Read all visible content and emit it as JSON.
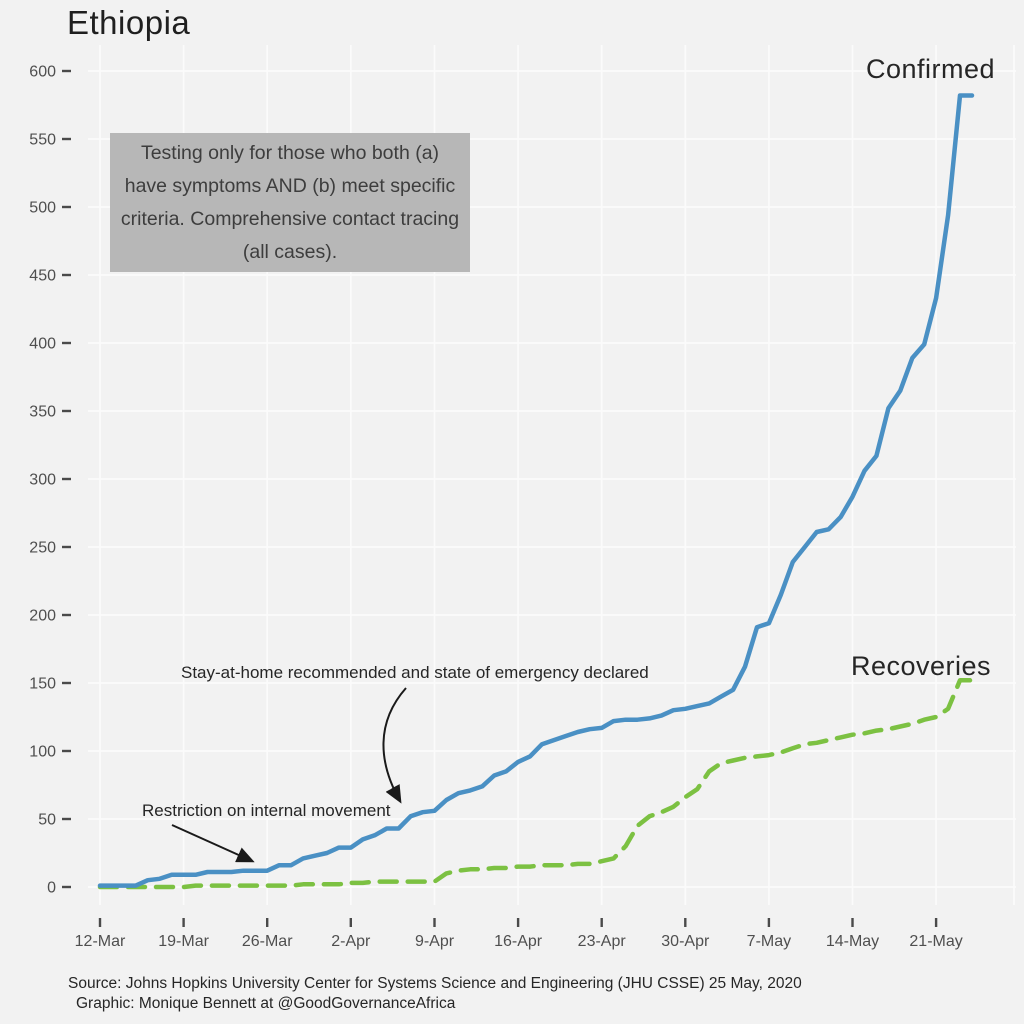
{
  "title": "Ethiopia",
  "note": {
    "lines": [
      "Testing only for those who both (a)",
      "have symptoms AND (b) meet specific",
      "criteria. Comprehensive contact tracing",
      "(all cases)."
    ]
  },
  "annotations": [
    {
      "label": "Stay-at-home recommended and state of emergency declared"
    },
    {
      "label": "Restriction on internal movement"
    }
  ],
  "series_labels": {
    "confirmed": "Confirmed",
    "recoveries": "Recoveries"
  },
  "source": {
    "line1": "Source: Johns Hopkins University Center for Systems Science and Engineering (JHU CSSE) 25 May, 2020",
    "line2": "Graphic: Monique Bennett at @GoodGovernanceAfrica"
  },
  "colors": {
    "background": "#f2f2f2",
    "grid": "#fbfbfb",
    "axis_tick": "#4a4a4a",
    "axis_text": "#4f4f4f",
    "confirmed": "#4a90c4",
    "recoveries": "#7cc142",
    "note_box": "#b7b7b7",
    "annotation_arrow": "#1a1a1a"
  },
  "chart_data": {
    "type": "line",
    "title": "Ethiopia",
    "x_start": "12-Mar-2020",
    "x_end": "24-May-2020",
    "cadence": "daily",
    "x_tick_labels": [
      "12-Mar",
      "19-Mar",
      "26-Mar",
      "2-Apr",
      "9-Apr",
      "16-Apr",
      "23-Apr",
      "30-Apr",
      "7-May",
      "14-May",
      "21-May"
    ],
    "x_tick_interval_days": 7,
    "ylim": [
      0,
      600
    ],
    "y_tick_step": 50,
    "grid": true,
    "legend_position": "end-of-line labels",
    "series": [
      {
        "name": "Recoveries",
        "color": "#7cc142",
        "style": "dashed",
        "values": [
          0,
          0,
          0,
          0,
          0,
          0,
          0,
          0,
          1,
          1,
          1,
          1,
          1,
          1,
          1,
          1,
          1,
          2,
          2,
          2,
          2,
          3,
          3,
          4,
          4,
          4,
          4,
          4,
          4,
          10,
          12,
          13,
          13,
          14,
          14,
          15,
          15,
          16,
          16,
          16,
          17,
          17,
          19,
          21,
          30,
          45,
          52,
          55,
          59,
          66,
          72,
          85,
          91,
          93,
          95,
          96,
          97,
          99,
          102,
          105,
          106,
          108,
          110,
          112,
          113,
          115,
          116,
          118,
          120,
          123,
          125,
          131,
          152,
          152
        ]
      },
      {
        "name": "Confirmed",
        "color": "#4a90c4",
        "style": "solid",
        "values": [
          1,
          1,
          1,
          1,
          5,
          6,
          9,
          9,
          9,
          11,
          11,
          11,
          12,
          12,
          12,
          16,
          16,
          21,
          23,
          25,
          29,
          29,
          35,
          38,
          43,
          43,
          52,
          55,
          56,
          64,
          69,
          71,
          74,
          82,
          85,
          92,
          96,
          105,
          108,
          111,
          114,
          116,
          117,
          122,
          123,
          123,
          124,
          126,
          130,
          131,
          133,
          135,
          140,
          145,
          162,
          191,
          194,
          215,
          239,
          250,
          261,
          263,
          272,
          287,
          306,
          317,
          352,
          365,
          389,
          399,
          433,
          494,
          582,
          582
        ]
      }
    ],
    "annotations": [
      {
        "text": "Stay-at-home recommended and state of emergency declared",
        "points_to_date": "8-Apr-2020",
        "points_to_value": 55
      },
      {
        "text": "Restriction on internal movement",
        "points_to_date": "26-Mar-2020",
        "points_to_value": 13
      }
    ]
  }
}
